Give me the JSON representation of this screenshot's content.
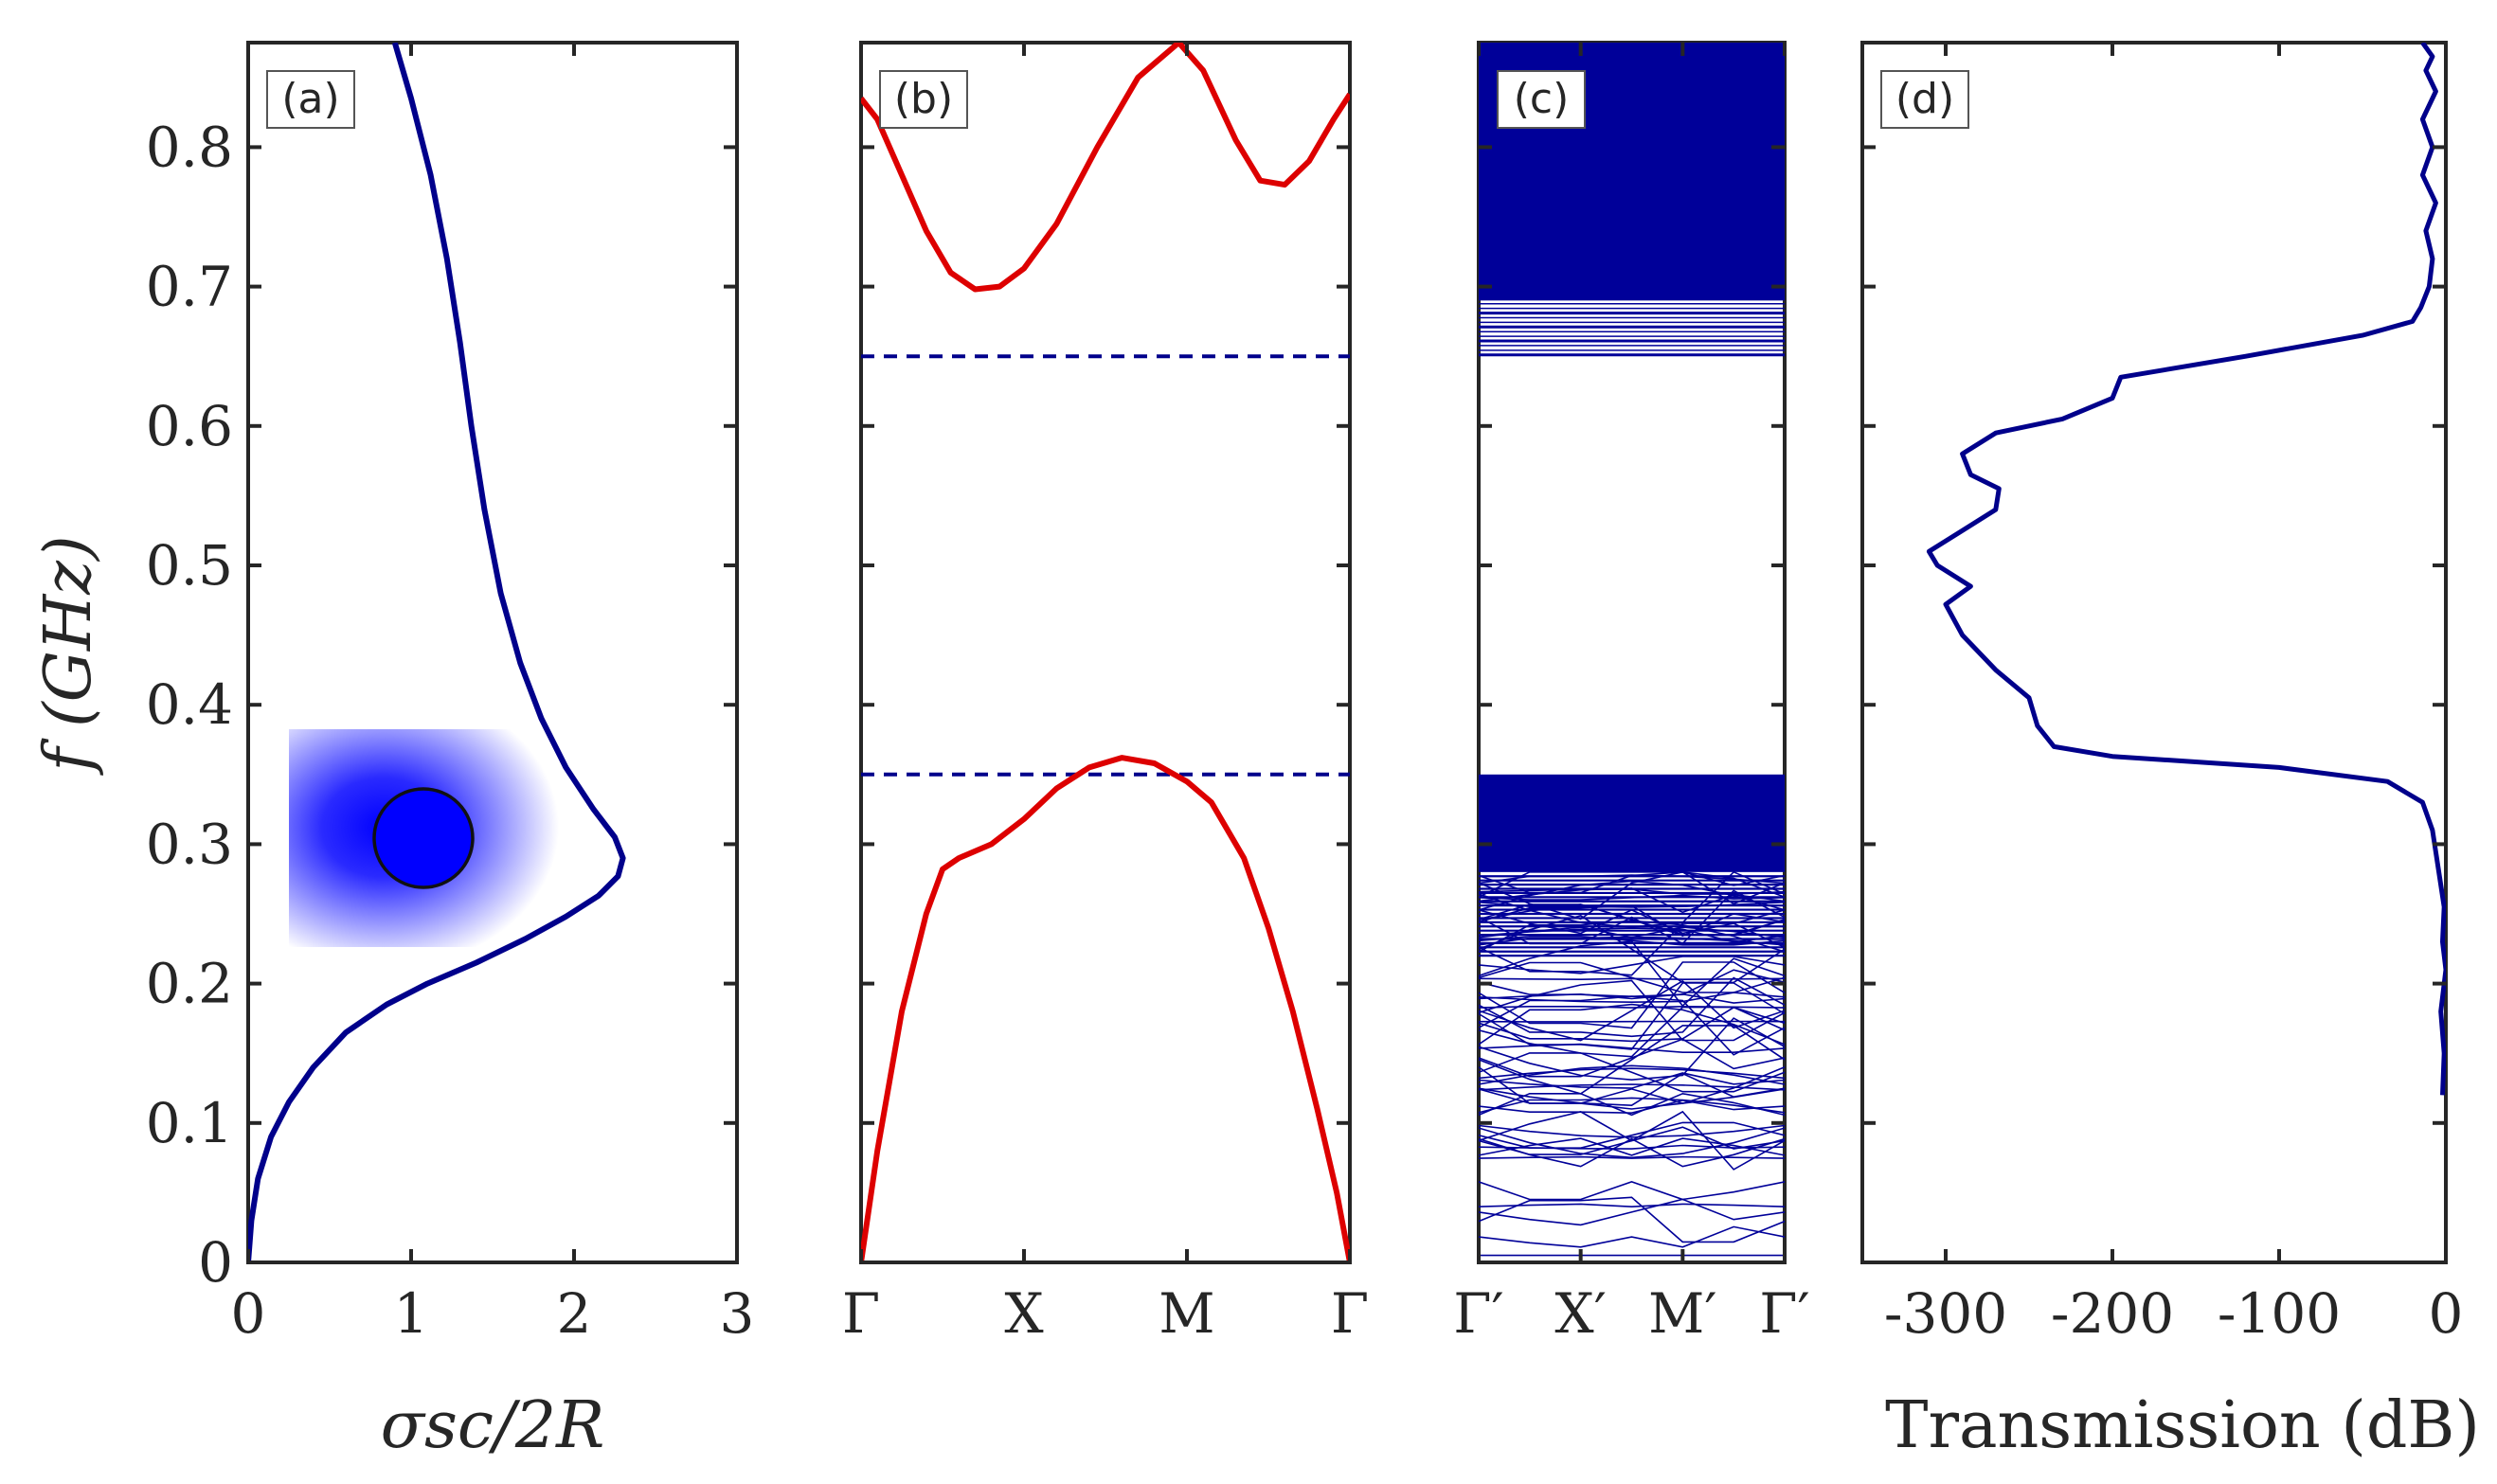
{
  "figure": {
    "y_axis_label": "f (GHz)",
    "y_ticks": [
      "0",
      "0.1",
      "0.2",
      "0.3",
      "0.4",
      "0.5",
      "0.6",
      "0.7",
      "0.8"
    ],
    "y_range": [
      0,
      0.875
    ]
  },
  "chart_data": [
    {
      "panel": "a",
      "label": "(a)",
      "type": "line",
      "xlabel": "σsc/2R",
      "ylabel": "f (GHz)",
      "xlim": [
        0,
        3
      ],
      "ylim": [
        0,
        0.875
      ],
      "x_ticks": [
        "0",
        "1",
        "2",
        "3"
      ],
      "inset": "sphere-field-distribution",
      "series": [
        {
          "name": "scattering cross section",
          "color": "#00008B",
          "points": [
            [
              0.0,
              0.0
            ],
            [
              0.02,
              0.03
            ],
            [
              0.06,
              0.06
            ],
            [
              0.14,
              0.09
            ],
            [
              0.25,
              0.115
            ],
            [
              0.4,
              0.14
            ],
            [
              0.6,
              0.165
            ],
            [
              0.85,
              0.185
            ],
            [
              1.1,
              0.2
            ],
            [
              1.4,
              0.215
            ],
            [
              1.7,
              0.232
            ],
            [
              1.95,
              0.248
            ],
            [
              2.15,
              0.263
            ],
            [
              2.27,
              0.277
            ],
            [
              2.3,
              0.29
            ],
            [
              2.25,
              0.305
            ],
            [
              2.12,
              0.325
            ],
            [
              1.95,
              0.355
            ],
            [
              1.8,
              0.39
            ],
            [
              1.67,
              0.43
            ],
            [
              1.55,
              0.48
            ],
            [
              1.45,
              0.54
            ],
            [
              1.37,
              0.6
            ],
            [
              1.3,
              0.66
            ],
            [
              1.22,
              0.72
            ],
            [
              1.12,
              0.78
            ],
            [
              1.0,
              0.835
            ],
            [
              0.9,
              0.875
            ]
          ]
        }
      ]
    },
    {
      "panel": "b",
      "label": "(b)",
      "type": "line",
      "x_ticks": [
        "Γ",
        "X",
        "M",
        "Γ"
      ],
      "ylim": [
        0,
        0.875
      ],
      "series": [
        {
          "name": "lower band",
          "color": "#DD0000",
          "points": [
            [
              0,
              0.0
            ],
            [
              0.1,
              0.08
            ],
            [
              0.25,
              0.18
            ],
            [
              0.4,
              0.25
            ],
            [
              0.5,
              0.282
            ],
            [
              0.6,
              0.29
            ],
            [
              0.8,
              0.3
            ],
            [
              1.0,
              0.318
            ],
            [
              1.2,
              0.34
            ],
            [
              1.4,
              0.355
            ],
            [
              1.6,
              0.362
            ],
            [
              1.8,
              0.358
            ],
            [
              2.0,
              0.345
            ],
            [
              2.15,
              0.33
            ],
            [
              2.35,
              0.29
            ],
            [
              2.5,
              0.24
            ],
            [
              2.65,
              0.18
            ],
            [
              2.8,
              0.11
            ],
            [
              2.92,
              0.05
            ],
            [
              3.0,
              0.0
            ]
          ]
        },
        {
          "name": "upper band",
          "color": "#DD0000",
          "points": [
            [
              0,
              0.835
            ],
            [
              0.1,
              0.82
            ],
            [
              0.25,
              0.78
            ],
            [
              0.4,
              0.74
            ],
            [
              0.55,
              0.71
            ],
            [
              0.7,
              0.698
            ],
            [
              0.85,
              0.7
            ],
            [
              1.0,
              0.713
            ],
            [
              1.2,
              0.745
            ],
            [
              1.45,
              0.8
            ],
            [
              1.7,
              0.85
            ],
            [
              1.95,
              0.875
            ],
            [
              2.1,
              0.855
            ],
            [
              2.3,
              0.805
            ],
            [
              2.45,
              0.776
            ],
            [
              2.6,
              0.773
            ],
            [
              2.75,
              0.79
            ],
            [
              2.9,
              0.82
            ],
            [
              3.0,
              0.838
            ]
          ]
        }
      ],
      "reference_lines": [
        {
          "name": "gap upper edge",
          "value": 0.65,
          "color": "#00008B",
          "style": "dashed"
        },
        {
          "name": "gap lower edge",
          "value": 0.35,
          "color": "#00008B",
          "style": "dashed"
        }
      ]
    },
    {
      "panel": "c",
      "label": "(c)",
      "type": "line",
      "x_ticks": [
        "Γ′",
        "X′",
        "M′",
        "Γ′"
      ],
      "ylim": [
        0,
        0.875
      ],
      "description_values": {
        "dense_band_upper": [
          0.65,
          0.875
        ],
        "dense_band_lower": [
          0.28,
          0.35
        ],
        "folded_bands_region": [
          0.0,
          0.28
        ]
      },
      "colors": {
        "bands": "#000099"
      }
    },
    {
      "panel": "d",
      "label": "(d)",
      "type": "line",
      "xlabel": "Transmission (dB)",
      "xlim": [
        -350,
        0
      ],
      "ylim": [
        0,
        0.875
      ],
      "x_ticks": [
        "-300",
        "-200",
        "-100",
        "0"
      ],
      "series": [
        {
          "name": "transmission",
          "color": "#00008B",
          "points": [
            [
              -2,
              0.12
            ],
            [
              -1,
              0.15
            ],
            [
              -3,
              0.18
            ],
            [
              0,
              0.21
            ],
            [
              -2,
              0.23
            ],
            [
              -1,
              0.255
            ],
            [
              -8,
              0.31
            ],
            [
              -14,
              0.33
            ],
            [
              -35,
              0.345
            ],
            [
              -100,
              0.355
            ],
            [
              -200,
              0.363
            ],
            [
              -235,
              0.37
            ],
            [
              -245,
              0.385
            ],
            [
              -250,
              0.405
            ],
            [
              -270,
              0.425
            ],
            [
              -290,
              0.45
            ],
            [
              -300,
              0.472
            ],
            [
              -285,
              0.485
            ],
            [
              -305,
              0.5
            ],
            [
              -310,
              0.51
            ],
            [
              -290,
              0.525
            ],
            [
              -270,
              0.54
            ],
            [
              -268,
              0.555
            ],
            [
              -285,
              0.565
            ],
            [
              -290,
              0.58
            ],
            [
              -270,
              0.595
            ],
            [
              -230,
              0.605
            ],
            [
              -200,
              0.62
            ],
            [
              -195,
              0.635
            ],
            [
              -120,
              0.65
            ],
            [
              -50,
              0.665
            ],
            [
              -20,
              0.675
            ],
            [
              -15,
              0.685
            ],
            [
              -10,
              0.7
            ],
            [
              -8,
              0.72
            ],
            [
              -12,
              0.74
            ],
            [
              -6,
              0.76
            ],
            [
              -14,
              0.78
            ],
            [
              -8,
              0.8
            ],
            [
              -14,
              0.82
            ],
            [
              -6,
              0.84
            ],
            [
              -12,
              0.855
            ],
            [
              -8,
              0.865
            ],
            [
              -14,
              0.875
            ]
          ]
        }
      ]
    }
  ]
}
